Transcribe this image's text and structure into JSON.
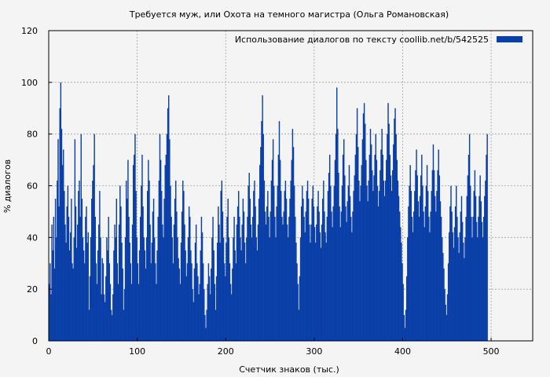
{
  "chart_data": {
    "type": "bar",
    "title": "Требуется муж, или Охота на темного магистра (Ольга Романовская)",
    "xlabel": "Счетчик знаков (тыс.)",
    "ylabel": "% диалогов",
    "xlim": [
      0,
      547
    ],
    "ylim": [
      0,
      120
    ],
    "xticks": [
      0,
      100,
      200,
      300,
      400,
      500
    ],
    "yticks": [
      0,
      20,
      40,
      60,
      80,
      100,
      120
    ],
    "grid": true,
    "legend_position": "top-right",
    "color": "#0a3fa8",
    "series": [
      {
        "name": "Использование диалогов по тексту  coollib.net/b/542525",
        "x_step": 1,
        "values": [
          22,
          30,
          18,
          45,
          35,
          48,
          28,
          55,
          40,
          62,
          78,
          52,
          90,
          100,
          82,
          68,
          74,
          58,
          45,
          38,
          52,
          60,
          48,
          35,
          42,
          55,
          30,
          28,
          40,
          78,
          52,
          36,
          45,
          58,
          62,
          48,
          80,
          55,
          40,
          35,
          30,
          48,
          52,
          38,
          42,
          12,
          25,
          40,
          55,
          62,
          68,
          80,
          48,
          30,
          22,
          35,
          45,
          58,
          40,
          18,
          32,
          30,
          18,
          15,
          25,
          40,
          35,
          48,
          30,
          22,
          12,
          10,
          18,
          35,
          45,
          40,
          55,
          30,
          22,
          45,
          60,
          52,
          38,
          28,
          12,
          20,
          40,
          62,
          55,
          70,
          48,
          38,
          30,
          22,
          45,
          68,
          72,
          80,
          58,
          40,
          30,
          22,
          35,
          48,
          60,
          72,
          52,
          40,
          35,
          28,
          40,
          58,
          70,
          62,
          45,
          30,
          38,
          50,
          55,
          40,
          30,
          22,
          35,
          48,
          62,
          80,
          70,
          58,
          45,
          40,
          55,
          68,
          72,
          80,
          90,
          95,
          78,
          60,
          48,
          40,
          30,
          45,
          55,
          62,
          50,
          40,
          32,
          28,
          22,
          38,
          50,
          62,
          58,
          45,
          35,
          25,
          30,
          40,
          52,
          48,
          35,
          30,
          20,
          15,
          28,
          38,
          45,
          30,
          25,
          18,
          22,
          35,
          48,
          42,
          30,
          20,
          10,
          5,
          12,
          22,
          30,
          25,
          18,
          28,
          40,
          48,
          35,
          22,
          12,
          25,
          38,
          52,
          45,
          38,
          58,
          62,
          50,
          40,
          30,
          25,
          38,
          48,
          55,
          40,
          30,
          22,
          18,
          28,
          40,
          48,
          35,
          30,
          45,
          52,
          58,
          48,
          40,
          35,
          45,
          55,
          50,
          38,
          30,
          40,
          48,
          60,
          65,
          55,
          45,
          40,
          48,
          58,
          62,
          52,
          40,
          35,
          45,
          55,
          68,
          75,
          85,
          95,
          80,
          62,
          50,
          45,
          52,
          58,
          48,
          40,
          50,
          62,
          70,
          78,
          60,
          48,
          40,
          52,
          60,
          72,
          85,
          70,
          58,
          48,
          45,
          50,
          58,
          62,
          55,
          45,
          40,
          48,
          55,
          62,
          70,
          82,
          75,
          60,
          48,
          38,
          30,
          22,
          12,
          25,
          40,
          52,
          60,
          55,
          48,
          42,
          50,
          58,
          62,
          55,
          45,
          38,
          45,
          55,
          60,
          52,
          44,
          38,
          45,
          52,
          58,
          50,
          42,
          36,
          45,
          55,
          62,
          50,
          42,
          38,
          48,
          58,
          65,
          72,
          60,
          50,
          44,
          52,
          60,
          70,
          80,
          98,
          82,
          65,
          52,
          44,
          50,
          60,
          72,
          78,
          64,
          52,
          46,
          54,
          60,
          68,
          56,
          48,
          42,
          50,
          58,
          64,
          72,
          80,
          90,
          75,
          62,
          54,
          60,
          68,
          78,
          88,
          92,
          84,
          70,
          60,
          54,
          62,
          72,
          82,
          76,
          66,
          58,
          64,
          72,
          80,
          70,
          60,
          52,
          58,
          66,
          74,
          82,
          72,
          62,
          56,
          62,
          70,
          80,
          92,
          84,
          72,
          64,
          58,
          66,
          76,
          86,
          90,
          80,
          70,
          62,
          56,
          50,
          44,
          38,
          30,
          22,
          10,
          5,
          12,
          25,
          40,
          52,
          60,
          68,
          58,
          48,
          42,
          50,
          58,
          66,
          74,
          64,
          54,
          48,
          56,
          64,
          72,
          60,
          50,
          44,
          52,
          60,
          68,
          58,
          48,
          42,
          50,
          58,
          66,
          76,
          66,
          56,
          50,
          58,
          66,
          74,
          64,
          54,
          48,
          40,
          34,
          28,
          20,
          14,
          10,
          18,
          30,
          42,
          52,
          60,
          50,
          42,
          36,
          44,
          52,
          60,
          48,
          40,
          34,
          42,
          50,
          56,
          46,
          38,
          32,
          40,
          48,
          56,
          64,
          72,
          80,
          60,
          48,
          40,
          48,
          58,
          66,
          56,
          46,
          40,
          48,
          56,
          64,
          54,
          46,
          40,
          48,
          56,
          62,
          72,
          80
        ]
      }
    ]
  }
}
